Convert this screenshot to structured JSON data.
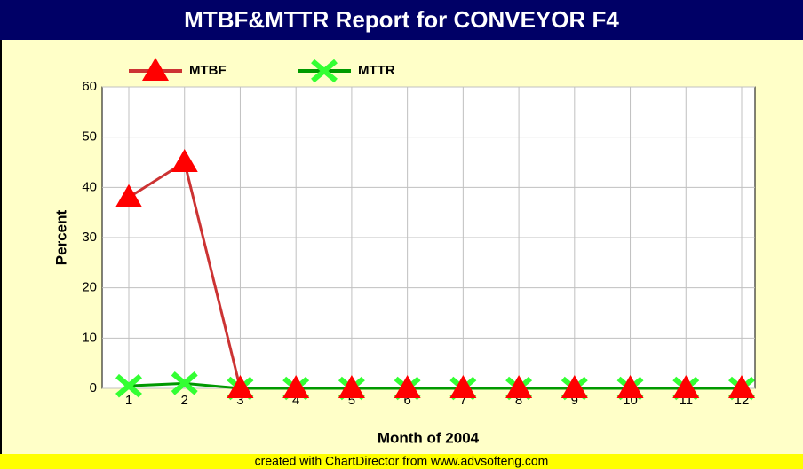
{
  "chart_data": {
    "type": "line",
    "title": "MTBF&MTTR Report for CONVEYOR F4",
    "xlabel": "Month of  2004",
    "ylabel": "Percent",
    "footer": "created with ChartDirector from www.advsofteng.com",
    "categories": [
      "1",
      "2",
      "3",
      "4",
      "5",
      "6",
      "7",
      "8",
      "9",
      "10",
      "11",
      "12"
    ],
    "series": [
      {
        "name": "MTBF",
        "color": "#ff0000",
        "line_color": "#cc3333",
        "marker": "triangle",
        "values": [
          38,
          45,
          0,
          0,
          0,
          0,
          0,
          0,
          0,
          0,
          0,
          0
        ]
      },
      {
        "name": "MTTR",
        "color": "#33ff33",
        "line_color": "#009900",
        "marker": "cross",
        "values": [
          0.5,
          1,
          0,
          0,
          0,
          0,
          0,
          0,
          0,
          0,
          0,
          0
        ]
      }
    ],
    "ylim": [
      0,
      60
    ],
    "yticks": [
      0,
      10,
      20,
      30,
      40,
      50,
      60
    ],
    "grid": true
  }
}
